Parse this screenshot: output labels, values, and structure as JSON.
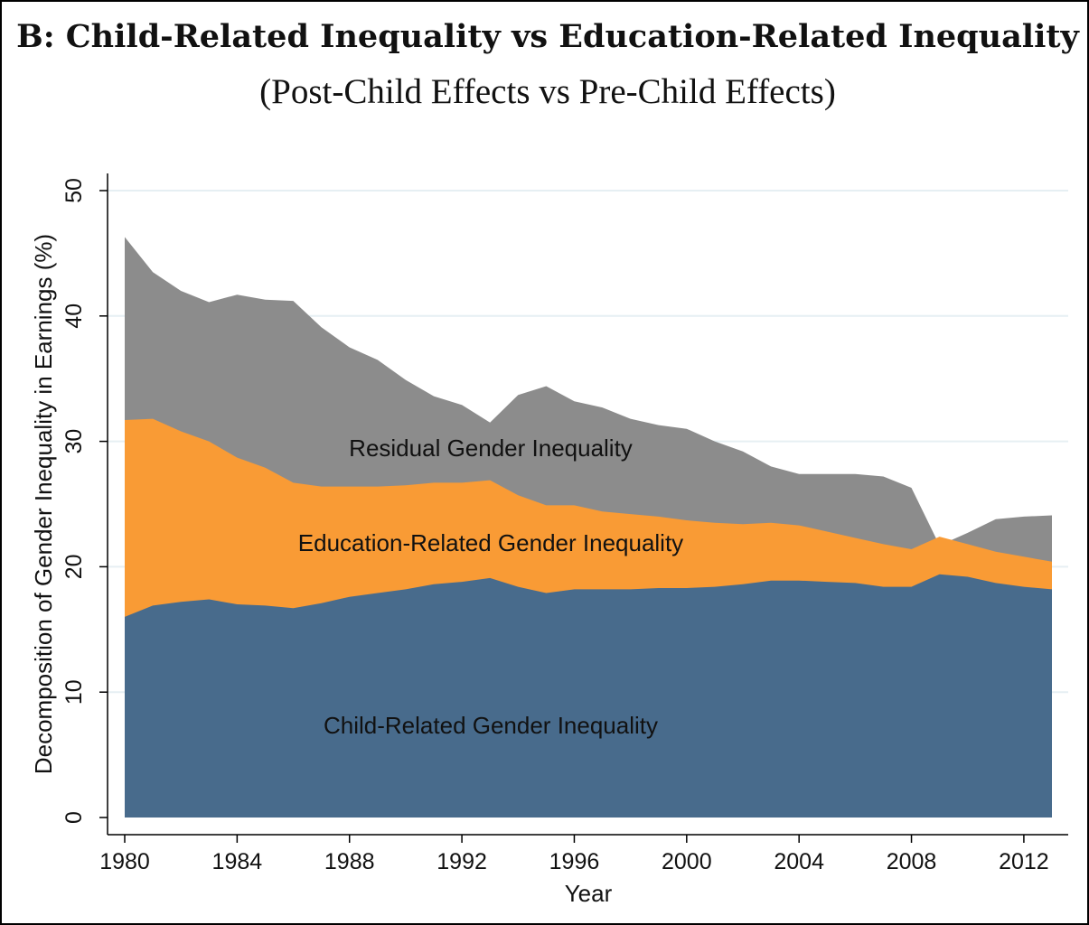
{
  "chart_data": {
    "type": "area",
    "stacked": true,
    "title": "B: Child-Related Inequality vs Education-Related Inequality",
    "subtitle": "(Post-Child Effects vs Pre-Child Effects)",
    "xlabel": "Year",
    "ylabel": "Decomposition of Gender Inequality in Earnings (%)",
    "xlim": [
      1980,
      2013
    ],
    "ylim": [
      0,
      50
    ],
    "xticks": [
      1980,
      1984,
      1988,
      1992,
      1996,
      2000,
      2004,
      2008,
      2012
    ],
    "yticks": [
      0,
      10,
      20,
      30,
      40,
      50
    ],
    "grid": true,
    "x": [
      1980,
      1981,
      1982,
      1983,
      1984,
      1985,
      1986,
      1987,
      1988,
      1989,
      1990,
      1991,
      1992,
      1993,
      1994,
      1995,
      1996,
      1997,
      1998,
      1999,
      2000,
      2001,
      2002,
      2003,
      2004,
      2005,
      2006,
      2007,
      2008,
      2009,
      2010,
      2011,
      2012,
      2013
    ],
    "series": [
      {
        "name": "Child-Related Gender Inequality",
        "color": "#486b8c",
        "values": [
          16.0,
          16.9,
          17.2,
          17.4,
          17.0,
          16.9,
          16.7,
          17.1,
          17.6,
          17.9,
          18.2,
          18.6,
          18.8,
          19.1,
          18.4,
          17.9,
          18.2,
          18.2,
          18.2,
          18.3,
          18.3,
          18.4,
          18.6,
          18.9,
          18.9,
          18.8,
          18.7,
          18.4,
          18.4,
          19.4,
          19.2,
          18.7,
          18.4,
          18.2
        ]
      },
      {
        "name": "Education-Related Gender Inequality",
        "color": "#f99b35",
        "values": [
          15.7,
          14.9,
          13.6,
          12.6,
          11.7,
          11.0,
          10.0,
          9.3,
          8.8,
          8.5,
          8.3,
          8.1,
          7.9,
          7.8,
          7.3,
          7.0,
          6.7,
          6.2,
          6.0,
          5.7,
          5.4,
          5.1,
          4.8,
          4.6,
          4.4,
          4.0,
          3.6,
          3.4,
          3.0,
          3.0,
          2.6,
          2.5,
          2.4,
          2.2
        ]
      },
      {
        "name": "Residual Gender Inequality",
        "color": "#8c8c8c",
        "values": [
          14.6,
          11.7,
          11.2,
          11.1,
          13.0,
          13.4,
          14.5,
          12.7,
          11.1,
          10.1,
          8.4,
          6.9,
          6.2,
          4.6,
          8.0,
          9.5,
          8.3,
          8.3,
          7.6,
          7.3,
          7.3,
          6.5,
          5.8,
          4.5,
          4.1,
          4.6,
          5.1,
          5.4,
          4.9,
          -0.7,
          0.9,
          2.6,
          3.2,
          3.7
        ]
      }
    ]
  }
}
